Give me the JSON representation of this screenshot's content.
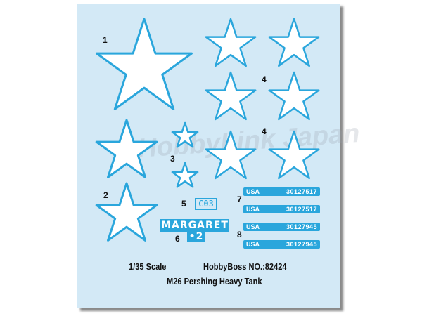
{
  "colors": {
    "sheet": "#d3e9f6",
    "decal_blue": "#2aa6dc",
    "star_fill": "#ffffff"
  },
  "watermark": "HobbyLink Japan",
  "labels": [
    "1",
    "2",
    "3",
    "4",
    "4",
    "5",
    "6",
    "7",
    "8"
  ],
  "decals": {
    "c03": "C03",
    "margaret": "MARGARET",
    "margaret_sub": "•2",
    "strips": [
      {
        "left": "USA",
        "right": "30127517"
      },
      {
        "left": "USA",
        "right": "30127517"
      },
      {
        "left": "USA",
        "right": "30127945"
      },
      {
        "left": "USA",
        "right": "30127945"
      }
    ]
  },
  "footer": {
    "scale": "1/35  Scale",
    "brand": "HobbyBoss  NO.:82424",
    "title": "M26 Pershing Heavy Tank"
  }
}
